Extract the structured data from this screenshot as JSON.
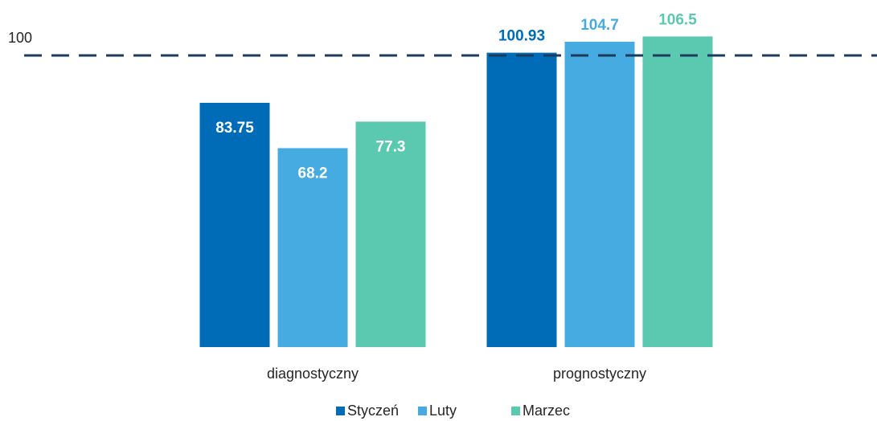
{
  "chart_data": {
    "type": "bar",
    "categories": [
      "diagnostyczny",
      "prognostyczny"
    ],
    "series": [
      {
        "name": "Styczeń",
        "color": "#006bb6",
        "values": [
          83.75,
          100.93
        ]
      },
      {
        "name": "Luty",
        "color": "#45abe0",
        "values": [
          68.2,
          104.7
        ]
      },
      {
        "name": "Marzec",
        "color": "#5bc8b0",
        "values": [
          77.3,
          106.5
        ]
      }
    ],
    "ylim": [
      0,
      119
    ],
    "reference_line": 100,
    "reference_line_color": "#1f3b5c",
    "legend": "bottom"
  }
}
